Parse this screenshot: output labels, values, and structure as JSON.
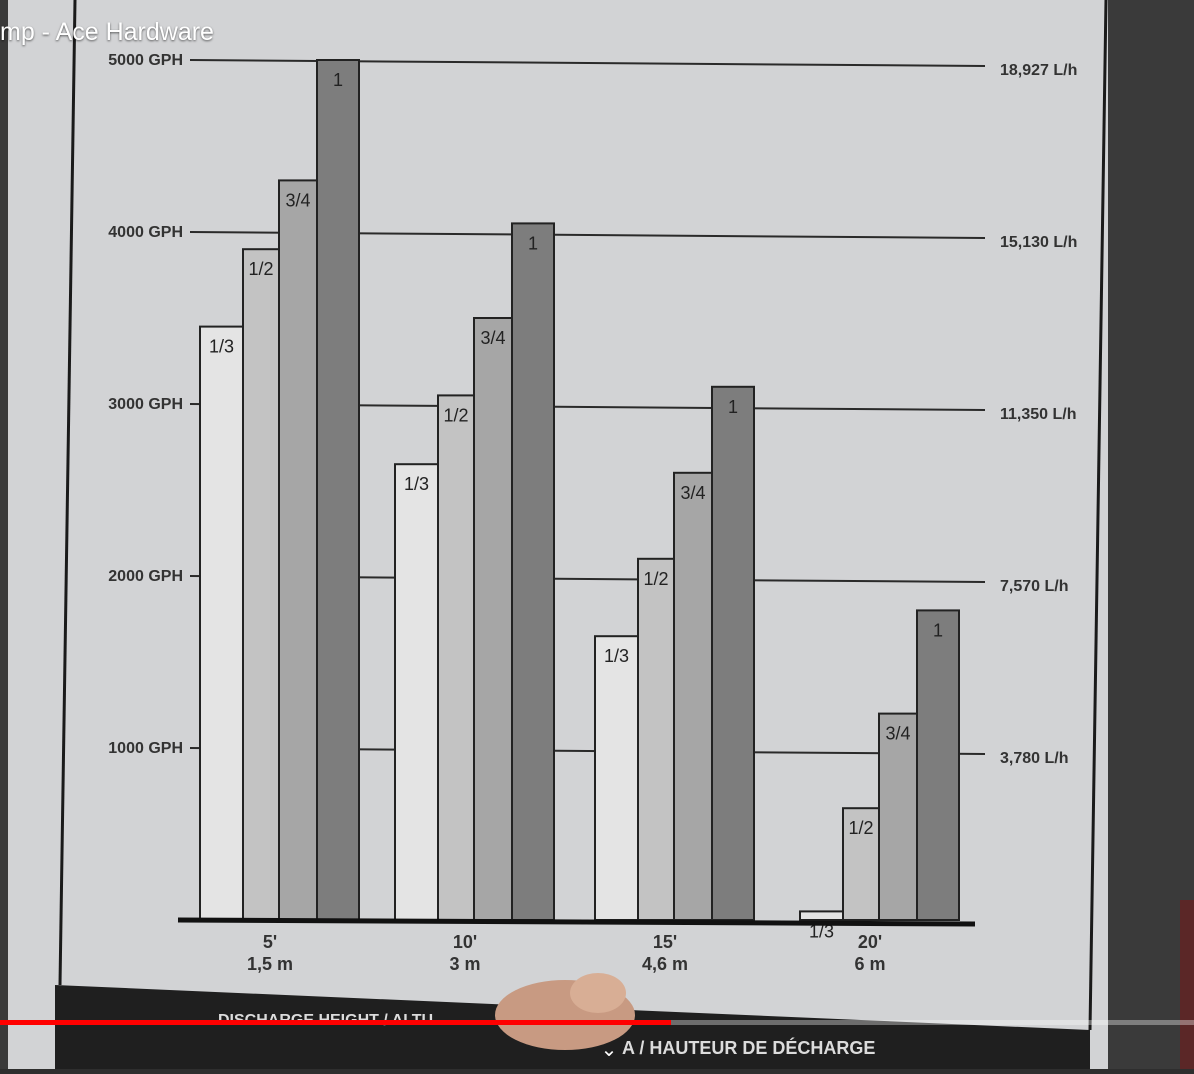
{
  "video": {
    "title_fragment": "mp - Ace Hardware",
    "progress": 0.562
  },
  "chart_data": {
    "type": "bar",
    "categories": [
      {
        "ft": "5'",
        "m": "1,5 m"
      },
      {
        "ft": "10'",
        "m": "3 m"
      },
      {
        "ft": "15'",
        "m": "4,6 m"
      },
      {
        "ft": "20'",
        "m": "6 m"
      }
    ],
    "series": [
      {
        "name": "1/3",
        "values": [
          3450,
          2650,
          1650,
          50
        ]
      },
      {
        "name": "1/2",
        "values": [
          3900,
          3050,
          2100,
          650
        ]
      },
      {
        "name": "3/4",
        "values": [
          4300,
          3500,
          2600,
          1200
        ]
      },
      {
        "name": "1",
        "values": [
          5000,
          4050,
          3100,
          1800
        ]
      }
    ],
    "y_left_ticks": [
      {
        "value": 1000,
        "label": "1000 GPH"
      },
      {
        "value": 2000,
        "label": "2000 GPH"
      },
      {
        "value": 3000,
        "label": "3000 GPH"
      },
      {
        "value": 4000,
        "label": "4000 GPH"
      },
      {
        "value": 5000,
        "label": "5000 GPH"
      }
    ],
    "y_right_ticks": [
      {
        "value": 1000,
        "label": "3,780 L/h"
      },
      {
        "value": 2000,
        "label": "7,570 L/h"
      },
      {
        "value": 3000,
        "label": "11,350 L/h"
      },
      {
        "value": 4000,
        "label": "15,130 L/h"
      },
      {
        "value": 5000,
        "label": "18,927 L/h"
      }
    ],
    "ylim": [
      0,
      5000
    ],
    "grid": true,
    "xlabel_fragments": [
      "DISCHARGE HEIGHT / ALTU",
      "A / HAUTEUR DE DÉCHARGE"
    ],
    "colors": {
      "1/3": "#e4e4e4",
      "1/2": "#c3c3c3",
      "3/4": "#a6a6a6",
      "1": "#7d7d7d"
    }
  }
}
